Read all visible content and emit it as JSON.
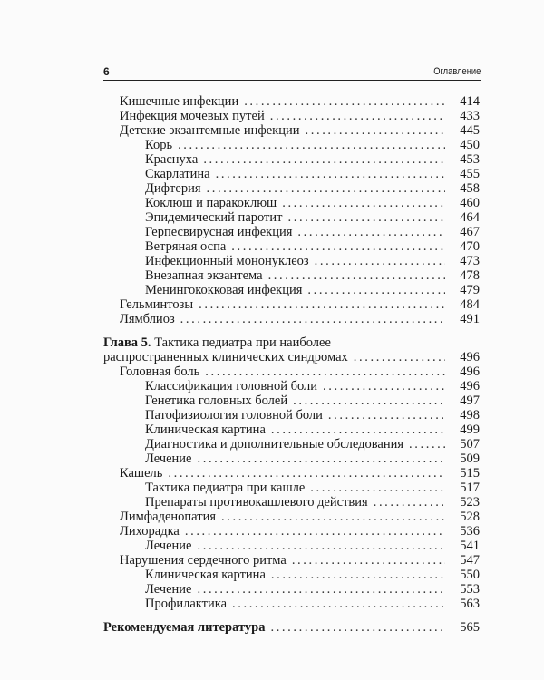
{
  "header": {
    "page_number": "6",
    "running_title": "Оглавление"
  },
  "toc_part1": [
    {
      "level": 1,
      "title": "Кишечные инфекции",
      "page": "414"
    },
    {
      "level": 1,
      "title": "Инфекция мочевых путей",
      "page": "433"
    },
    {
      "level": 1,
      "title": "Детские экзантемные инфекции",
      "page": "445"
    },
    {
      "level": 2,
      "title": "Корь",
      "page": "450"
    },
    {
      "level": 2,
      "title": "Краснуха",
      "page": "453"
    },
    {
      "level": 2,
      "title": "Скарлатина",
      "page": "455"
    },
    {
      "level": 2,
      "title": "Дифтерия",
      "page": "458"
    },
    {
      "level": 2,
      "title": "Коклюш и паракоклюш",
      "page": "460"
    },
    {
      "level": 2,
      "title": "Эпидемический паротит",
      "page": "464"
    },
    {
      "level": 2,
      "title": "Герпесвирусная инфекция",
      "page": "467"
    },
    {
      "level": 2,
      "title": "Ветряная оспа",
      "page": "470"
    },
    {
      "level": 2,
      "title": "Инфекционный мононуклеоз",
      "page": "473"
    },
    {
      "level": 2,
      "title": "Внезапная экзантема",
      "page": "478"
    },
    {
      "level": 2,
      "title": "Менингококковая инфекция",
      "page": "479"
    },
    {
      "level": 1,
      "title": "Гельминтозы",
      "page": "484"
    },
    {
      "level": 1,
      "title": "Лямблиоз",
      "page": "491"
    }
  ],
  "chapter5": {
    "label": "Глава 5.",
    "title_line1": "Тактика педиатра при наиболее",
    "title_line2": "распространенных клинических синдромах",
    "page": "496"
  },
  "toc_part2": [
    {
      "level": 1,
      "title": "Головная боль",
      "page": "496"
    },
    {
      "level": 2,
      "title": "Классификация головной боли",
      "page": "496"
    },
    {
      "level": 2,
      "title": "Генетика головных болей",
      "page": "497"
    },
    {
      "level": 2,
      "title": "Патофизиология головной боли",
      "page": "498"
    },
    {
      "level": 2,
      "title": "Клиническая картина",
      "page": "499"
    },
    {
      "level": 2,
      "title": "Диагностика и дополнительные обследования",
      "page": "507"
    },
    {
      "level": 2,
      "title": "Лечение",
      "page": "509"
    },
    {
      "level": 1,
      "title": "Кашель",
      "page": "515"
    },
    {
      "level": 2,
      "title": "Тактика педиатра при кашле",
      "page": "517"
    },
    {
      "level": 2,
      "title": "Препараты противокашлевого действия",
      "page": "523"
    },
    {
      "level": 1,
      "title": "Лимфаденопатия",
      "page": "528"
    },
    {
      "level": 1,
      "title": "Лихорадка",
      "page": "536"
    },
    {
      "level": 2,
      "title": "Лечение",
      "page": "541"
    },
    {
      "level": 1,
      "title": "Нарушения сердечного ритма",
      "page": "547"
    },
    {
      "level": 2,
      "title": "Клиническая картина",
      "page": "550"
    },
    {
      "level": 2,
      "title": "Лечение",
      "page": "553"
    },
    {
      "level": 2,
      "title": "Профилактика",
      "page": "563"
    }
  ],
  "references": {
    "title": "Рекомендуемая литература",
    "page": "565"
  }
}
